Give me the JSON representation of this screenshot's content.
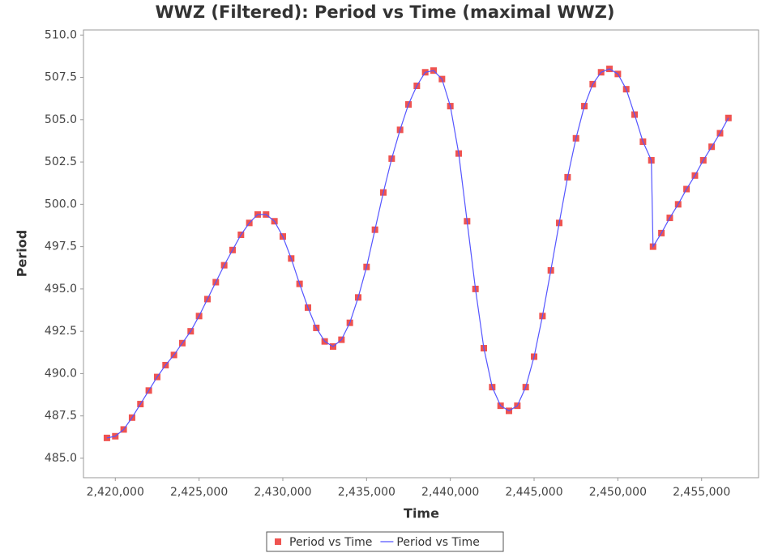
{
  "chart_data": {
    "type": "scatter",
    "title": "WWZ (Filtered): Period vs Time (maximal WWZ)",
    "x_label": "Time",
    "y_label": "Period",
    "x": [
      2419500,
      2420000,
      2420500,
      2421000,
      2421500,
      2422000,
      2422500,
      2423000,
      2423500,
      2424000,
      2424500,
      2425000,
      2425500,
      2426000,
      2426500,
      2427000,
      2427500,
      2428000,
      2428500,
      2429000,
      2429500,
      2430000,
      2430500,
      2431000,
      2431500,
      2432000,
      2432500,
      2433000,
      2433500,
      2434000,
      2434500,
      2435000,
      2435500,
      2436000,
      2436500,
      2437000,
      2437500,
      2438000,
      2438500,
      2439000,
      2439500,
      2440000,
      2440500,
      2441000,
      2441500,
      2442000,
      2442500,
      2443000,
      2443500,
      2444000,
      2444500,
      2445000,
      2445500,
      2446000,
      2446500,
      2447000,
      2447500,
      2448000,
      2448500,
      2449000,
      2449500,
      2450000,
      2450500,
      2451000,
      2451500,
      2452000,
      2452100,
      2452600,
      2453100,
      2453600,
      2454100,
      2454600,
      2455100,
      2455600,
      2456100,
      2456600
    ],
    "series": [
      {
        "name": "Period vs Time",
        "mode": "markers",
        "color": "#ef5350",
        "values": [
          486.2,
          486.3,
          486.7,
          487.4,
          488.2,
          489.0,
          489.8,
          490.5,
          491.1,
          491.8,
          492.5,
          493.4,
          494.4,
          495.4,
          496.4,
          497.3,
          498.2,
          498.9,
          499.4,
          499.4,
          499.0,
          498.1,
          496.8,
          495.3,
          493.9,
          492.7,
          491.9,
          491.6,
          492.0,
          493.0,
          494.5,
          496.3,
          498.5,
          500.7,
          502.7,
          504.4,
          505.9,
          507.0,
          507.8,
          507.9,
          507.4,
          505.8,
          503.0,
          499.0,
          495.0,
          491.5,
          489.2,
          488.1,
          487.8,
          488.1,
          489.2,
          491.0,
          493.4,
          496.1,
          498.9,
          501.6,
          503.9,
          505.8,
          507.1,
          507.8,
          508.0,
          507.7,
          506.8,
          505.3,
          503.7,
          502.6,
          497.5,
          498.3,
          499.2,
          500.0,
          500.9,
          501.7,
          502.6,
          503.4,
          504.2,
          505.1
        ]
      },
      {
        "name": "Period vs Time",
        "mode": "lines",
        "color": "#5555ff",
        "values": [
          486.2,
          486.3,
          486.7,
          487.4,
          488.2,
          489.0,
          489.8,
          490.5,
          491.1,
          491.8,
          492.5,
          493.4,
          494.4,
          495.4,
          496.4,
          497.3,
          498.2,
          498.9,
          499.4,
          499.4,
          499.0,
          498.1,
          496.8,
          495.3,
          493.9,
          492.7,
          491.9,
          491.6,
          492.0,
          493.0,
          494.5,
          496.3,
          498.5,
          500.7,
          502.7,
          504.4,
          505.9,
          507.0,
          507.8,
          507.9,
          507.4,
          505.8,
          503.0,
          499.0,
          495.0,
          491.5,
          489.2,
          488.1,
          487.8,
          488.1,
          489.2,
          491.0,
          493.4,
          496.1,
          498.9,
          501.6,
          503.9,
          505.8,
          507.1,
          507.8,
          508.0,
          507.7,
          506.8,
          505.3,
          503.7,
          502.6,
          497.5,
          498.3,
          499.2,
          500.0,
          500.9,
          501.7,
          502.6,
          503.4,
          504.2,
          505.1
        ]
      }
    ],
    "xlim": [
      2418100,
      2458400
    ],
    "ylim": [
      483.85,
      510.3
    ],
    "xticks": [
      {
        "value": 2420000,
        "label": "2,420,000"
      },
      {
        "value": 2425000,
        "label": "2,425,000"
      },
      {
        "value": 2430000,
        "label": "2,430,000"
      },
      {
        "value": 2435000,
        "label": "2,435,000"
      },
      {
        "value": 2440000,
        "label": "2,440,000"
      },
      {
        "value": 2445000,
        "label": "2,445,000"
      },
      {
        "value": 2450000,
        "label": "2,450,000"
      },
      {
        "value": 2455000,
        "label": "2,455,000"
      }
    ],
    "yticks": [
      {
        "value": 485,
        "label": "485.0"
      },
      487.5,
      {
        "value": 490,
        "label": "490.0"
      },
      492.5,
      {
        "value": 495,
        "label": "495.0"
      },
      497.5,
      {
        "value": 500,
        "label": "500.0"
      },
      502.5,
      {
        "value": 505,
        "label": "505.0"
      },
      507.5,
      {
        "value": 510,
        "label": "510.0"
      }
    ],
    "grid": false
  }
}
